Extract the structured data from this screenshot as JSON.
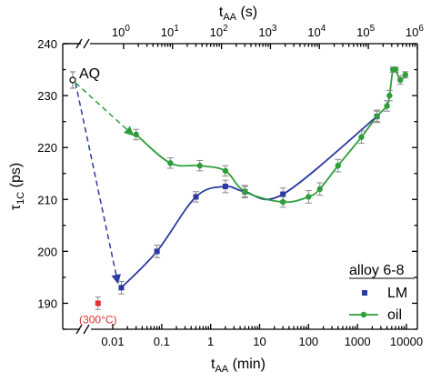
{
  "chart_data": {
    "type": "line",
    "title": "",
    "x_axis_bottom": {
      "label_main": "t",
      "label_sub": "AA",
      "label_unit": " (min)",
      "scale": "log",
      "ticks": [
        "0.01",
        "0.1",
        "1",
        "10",
        "100",
        "1000",
        "10000"
      ]
    },
    "x_axis_top": {
      "label_main": "t",
      "label_sub": "AA",
      "label_unit": " (s)",
      "scale": "log",
      "tick_base": "10",
      "tick_exponents": [
        "0",
        "1",
        "2",
        "3",
        "4",
        "5",
        "6"
      ]
    },
    "y_axis": {
      "label_main": "τ",
      "label_sub": "1C",
      "label_unit": " (ps)",
      "ylim": [
        185,
        240
      ],
      "ticks": [
        "190",
        "200",
        "210",
        "220",
        "230",
        "240"
      ]
    },
    "legend": {
      "title": "alloy 6-8",
      "placement": "bottom-right",
      "entries": [
        "LM",
        "oil"
      ]
    },
    "aq_point": {
      "label": "AQ",
      "y": 233
    },
    "annotation_300c": {
      "label": "(300°C)",
      "x": 0.005,
      "y": 190,
      "err": 1.2,
      "color": "#e23030"
    },
    "series": [
      {
        "name": "LM",
        "color": "#2b3a9f",
        "x": [
          0.015,
          0.08,
          0.5,
          2,
          5,
          30,
          2500
        ],
        "y": [
          193,
          200,
          210.5,
          212.5,
          211.5,
          211,
          226
        ],
        "err": [
          1.2,
          1.2,
          1.0,
          1.2,
          1.2,
          1.2,
          1.0
        ]
      },
      {
        "name": "oil",
        "color": "#2e9e3a",
        "x": [
          0.03,
          0.15,
          0.6,
          2,
          5,
          30,
          100,
          170,
          400,
          1200,
          2500,
          4000,
          4500,
          5300,
          6000,
          7500,
          9500
        ],
        "y": [
          222.5,
          217,
          216.5,
          215.5,
          211.5,
          209.5,
          210.5,
          212,
          216.5,
          222,
          226,
          228,
          230,
          235,
          235,
          233,
          234
        ],
        "err": [
          1.0,
          1.0,
          1.0,
          1.0,
          1.0,
          1.0,
          1.2,
          1.2,
          1.2,
          1.2,
          1.2,
          1.0,
          1.0,
          0.5,
          0.5,
          0.8,
          0.6
        ]
      }
    ]
  }
}
